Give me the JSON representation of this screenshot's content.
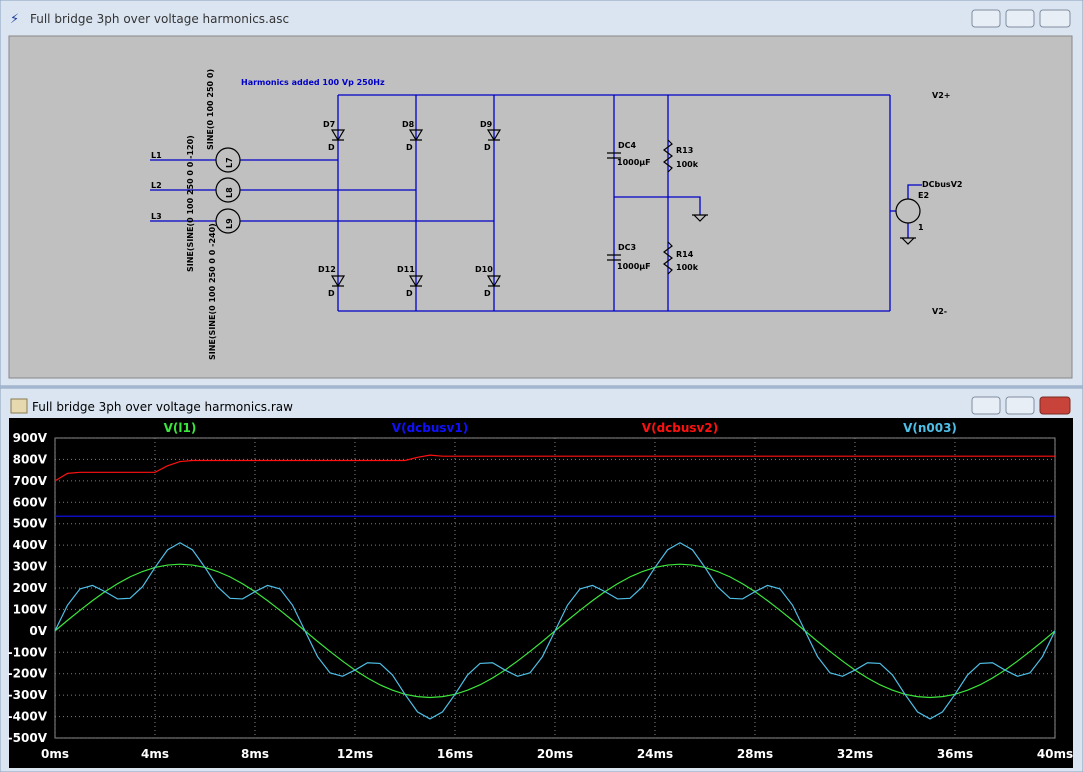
{
  "schematic_window": {
    "title": "Full bridge 3ph over voltage harmonics.asc",
    "annotation": "Harmonics added 100 Vp 250Hz",
    "nets": [
      "L1",
      "L2",
      "L3",
      "V2+",
      "V2-",
      "DCbusV2"
    ],
    "sources": [
      {
        "name": "L7",
        "value": "SINE(0 100 250 0)"
      },
      {
        "name": "L8",
        "value": "SINE(SINE(0 100 250 0 0 -120)"
      },
      {
        "name": "L9",
        "value": "SINE(SINE(0 100 250 0 0 -240)"
      }
    ],
    "diodes": [
      {
        "name": "D7",
        "model": "D"
      },
      {
        "name": "D8",
        "model": "D"
      },
      {
        "name": "D9",
        "model": "D"
      },
      {
        "name": "D12",
        "model": "D"
      },
      {
        "name": "D11",
        "model": "D"
      },
      {
        "name": "D10",
        "model": "D"
      }
    ],
    "capacitors": [
      {
        "name": "DC4",
        "value": "1000µF"
      },
      {
        "name": "DC3",
        "value": "1000µF"
      }
    ],
    "resistors": [
      {
        "name": "R13",
        "value": "100k"
      },
      {
        "name": "R14",
        "value": "100k"
      }
    ],
    "dependent_source": {
      "name": "E2",
      "gain": "1"
    }
  },
  "plot_window": {
    "title": "Full bridge 3ph over voltage harmonics.raw"
  },
  "chart_data": {
    "type": "line",
    "x": [
      0,
      0.5,
      1,
      1.5,
      2,
      2.5,
      3,
      3.5,
      4,
      4.5,
      5,
      5.5,
      6,
      6.5,
      7,
      7.5,
      8,
      8.5,
      9,
      9.5,
      10,
      10.5,
      11,
      11.5,
      12,
      12.5,
      13,
      13.5,
      14,
      14.5,
      15,
      15.5,
      16,
      16.5,
      17,
      17.5,
      18,
      18.5,
      19,
      19.5,
      20,
      20.5,
      21,
      21.5,
      22,
      22.5,
      23,
      23.5,
      24,
      24.5,
      25,
      25.5,
      26,
      26.5,
      27,
      27.5,
      28,
      28.5,
      29,
      29.5,
      30,
      30.5,
      31,
      31.5,
      32,
      32.5,
      33,
      33.5,
      34,
      34.5,
      35,
      35.5,
      36,
      36.5,
      37,
      37.5,
      38,
      38.5,
      39,
      39.5,
      40
    ],
    "series": [
      {
        "name": "V(l1)",
        "color": "#3ce63c",
        "values": [
          0,
          49,
          96,
          141,
          183,
          220,
          252,
          277,
          296,
          307,
          311,
          307,
          296,
          277,
          252,
          220,
          183,
          141,
          96,
          49,
          0,
          -49,
          -96,
          -141,
          -183,
          -220,
          -252,
          -277,
          -296,
          -307,
          -311,
          -307,
          -296,
          -277,
          -252,
          -220,
          -183,
          -141,
          -96,
          -49,
          0,
          49,
          96,
          141,
          183,
          220,
          252,
          277,
          296,
          307,
          311,
          307,
          296,
          277,
          252,
          220,
          183,
          141,
          96,
          49,
          0,
          -49,
          -96,
          -141,
          -183,
          -220,
          -252,
          -277,
          -296,
          -307,
          -311,
          -307,
          -296,
          -277,
          -252,
          -220,
          -183,
          -141,
          -96,
          -49,
          0
        ]
      },
      {
        "name": "V(dcbusv1)",
        "color": "#1010ff",
        "values": [
          535,
          535,
          535,
          535,
          535,
          535,
          535,
          535,
          535,
          535,
          535,
          535,
          535,
          535,
          535,
          535,
          535,
          535,
          535,
          535,
          535,
          535,
          535,
          535,
          535,
          535,
          535,
          535,
          535,
          535,
          535,
          535,
          535,
          535,
          535,
          535,
          535,
          535,
          535,
          535,
          535,
          535,
          535,
          535,
          535,
          535,
          535,
          535,
          535,
          535,
          535,
          535,
          535,
          535,
          535,
          535,
          535,
          535,
          535,
          535,
          535,
          535,
          535,
          535,
          535,
          535,
          535,
          535,
          535,
          535,
          535,
          535,
          535,
          535,
          535,
          535,
          535,
          535,
          535,
          535,
          535
        ]
      },
      {
        "name": "V(dcbusv2)",
        "color": "#ff1010",
        "values": [
          700,
          735,
          740,
          740,
          740,
          740,
          740,
          740,
          740,
          770,
          790,
          795,
          795,
          795,
          795,
          795,
          795,
          795,
          795,
          795,
          795,
          795,
          795,
          795,
          795,
          795,
          795,
          795,
          795,
          810,
          820,
          815,
          815,
          815,
          815,
          815,
          815,
          815,
          815,
          815,
          815,
          815,
          815,
          815,
          815,
          815,
          815,
          815,
          815,
          815,
          815,
          815,
          815,
          815,
          815,
          815,
          815,
          815,
          815,
          815,
          815,
          815,
          815,
          815,
          815,
          815,
          815,
          815,
          815,
          815,
          815,
          815,
          815,
          815,
          815,
          815,
          815,
          815,
          815,
          815,
          815
        ]
      },
      {
        "name": "V(n003)",
        "color": "#4fbfe6",
        "values": [
          0,
          120,
          196,
          212,
          183,
          149,
          152,
          206,
          296,
          378,
          411,
          378,
          296,
          206,
          152,
          149,
          183,
          212,
          196,
          120,
          0,
          -120,
          -196,
          -212,
          -183,
          -149,
          -152,
          -206,
          -296,
          -378,
          -411,
          -378,
          -296,
          -206,
          -152,
          -149,
          -183,
          -212,
          -196,
          -120,
          0,
          120,
          196,
          212,
          183,
          149,
          152,
          206,
          296,
          378,
          411,
          378,
          296,
          206,
          152,
          149,
          183,
          212,
          196,
          120,
          0,
          -120,
          -196,
          -212,
          -183,
          -149,
          -152,
          -206,
          -296,
          -378,
          -411,
          -378,
          -296,
          -206,
          -152,
          -149,
          -183,
          -212,
          -196,
          -120,
          0
        ]
      }
    ],
    "xlim": [
      0,
      40
    ],
    "xticks": [
      {
        "value": 0,
        "label": "0ms"
      },
      {
        "value": 4,
        "label": "4ms"
      },
      {
        "value": 8,
        "label": "8ms"
      },
      {
        "value": 12,
        "label": "12ms"
      },
      {
        "value": 16,
        "label": "16ms"
      },
      {
        "value": 20,
        "label": "20ms"
      },
      {
        "value": 24,
        "label": "24ms"
      },
      {
        "value": 28,
        "label": "28ms"
      },
      {
        "value": 32,
        "label": "32ms"
      },
      {
        "value": 36,
        "label": "36ms"
      },
      {
        "value": 40,
        "label": "40ms"
      }
    ],
    "ylim": [
      -500,
      900
    ],
    "yticks": [
      {
        "value": -500,
        "label": "-500V"
      },
      {
        "value": -400,
        "label": "-400V"
      },
      {
        "value": -300,
        "label": "-300V"
      },
      {
        "value": -200,
        "label": "-200V"
      },
      {
        "value": -100,
        "label": "-100V"
      },
      {
        "value": 0,
        "label": "0V"
      },
      {
        "value": 100,
        "label": "100V"
      },
      {
        "value": 200,
        "label": "200V"
      },
      {
        "value": 300,
        "label": "300V"
      },
      {
        "value": 400,
        "label": "400V"
      },
      {
        "value": 500,
        "label": "500V"
      },
      {
        "value": 600,
        "label": "600V"
      },
      {
        "value": 700,
        "label": "700V"
      },
      {
        "value": 800,
        "label": "800V"
      },
      {
        "value": 900,
        "label": "900V"
      }
    ],
    "grid": true
  }
}
